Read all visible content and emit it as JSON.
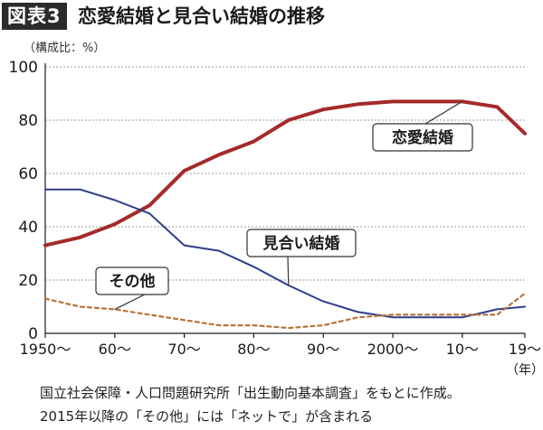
{
  "figure": {
    "badge": "図表3",
    "title": "恋愛結婚と見合い結婚の推移",
    "unit": "（構成比：%）",
    "notes": [
      "国立社会保障・人口問題研究所「出生動向基本調査」をもとに作成。",
      "2015年以降の「その他」には「ネットで」が含まれる"
    ]
  },
  "chart_data": {
    "type": "line",
    "x": [
      1950,
      1955,
      1960,
      1965,
      1970,
      1975,
      1980,
      1985,
      1990,
      1995,
      2000,
      2005,
      2010,
      2015,
      2019
    ],
    "x_ticks": [
      1950,
      1960,
      1970,
      1980,
      1990,
      2000,
      2010,
      2019
    ],
    "x_tick_labels": [
      "1950〜",
      "60〜",
      "70〜",
      "80〜",
      "90〜",
      "2000〜",
      "10〜",
      "19〜"
    ],
    "x_unit": "（年）",
    "xlim": [
      1950,
      2019
    ],
    "ylim": [
      0,
      100
    ],
    "y_ticks": [
      0,
      20,
      40,
      60,
      80,
      100
    ],
    "grid": true,
    "series": [
      {
        "name": "恋愛結婚",
        "color": "#a52a2a",
        "style": "solid",
        "values": [
          33,
          36,
          41,
          48,
          61,
          67,
          72,
          80,
          84,
          86,
          87,
          87,
          87,
          85,
          75
        ]
      },
      {
        "name": "見合い結婚",
        "color": "#2f3d8c",
        "style": "solid",
        "values": [
          54,
          54,
          50,
          45,
          33,
          31,
          25,
          18,
          12,
          8,
          6,
          6,
          6,
          9,
          10
        ]
      },
      {
        "name": "その他",
        "color": "#b5743a",
        "style": "dashed",
        "values": [
          13,
          10,
          9,
          7,
          5,
          3,
          3,
          2,
          3,
          6,
          7,
          7,
          7,
          7,
          15
        ]
      }
    ]
  }
}
